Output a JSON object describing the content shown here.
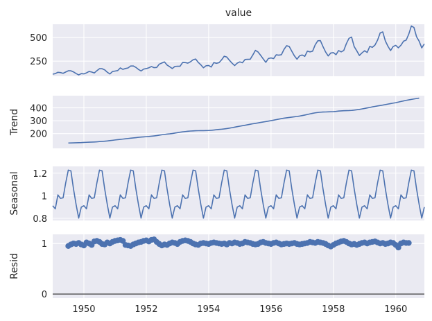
{
  "chart_data": [
    {
      "type": "line",
      "title": "value",
      "ylabel": "",
      "xlim": [
        1949.0,
        1960.917
      ],
      "ylim": [
        90,
        640
      ],
      "yticks": [
        250,
        500
      ],
      "grid": true,
      "series": [
        {
          "color": "#4c72b0",
          "x_start": 1949.0,
          "x_step": 0.08333,
          "values": [
            112,
            118,
            132,
            129,
            121,
            135,
            148,
            148,
            136,
            119,
            104,
            118,
            115,
            126,
            141,
            135,
            125,
            149,
            170,
            170,
            158,
            133,
            114,
            140,
            145,
            150,
            178,
            163,
            172,
            178,
            199,
            199,
            184,
            162,
            146,
            166,
            171,
            180,
            193,
            181,
            183,
            218,
            230,
            242,
            209,
            191,
            172,
            194,
            196,
            196,
            236,
            235,
            229,
            243,
            264,
            272,
            237,
            211,
            180,
            201,
            204,
            188,
            235,
            227,
            234,
            264,
            302,
            293,
            259,
            229,
            203,
            229,
            242,
            233,
            267,
            269,
            270,
            315,
            364,
            347,
            312,
            274,
            237,
            278,
            284,
            277,
            317,
            313,
            318,
            374,
            413,
            405,
            355,
            306,
            271,
            306,
            315,
            301,
            356,
            348,
            355,
            422,
            465,
            467,
            404,
            347,
            305,
            336,
            340,
            318,
            362,
            348,
            363,
            435,
            491,
            505,
            404,
            359,
            310,
            337,
            360,
            342,
            406,
            396,
            420,
            472,
            548,
            559,
            463,
            407,
            362,
            405,
            417,
            391,
            419,
            461,
            472,
            535,
            622,
            606,
            508,
            461,
            390,
            432
          ]
        }
      ]
    },
    {
      "type": "line",
      "title": "",
      "ylabel": "Trend",
      "xlim": [
        1949.0,
        1960.917
      ],
      "ylim": [
        85,
        495
      ],
      "yticks": [
        200,
        300,
        400
      ],
      "grid": true,
      "series": [
        {
          "color": "#4c72b0",
          "x_start": 1949.5,
          "x_step": 0.08333,
          "values": [
            126.8,
            127.3,
            127.9,
            128.6,
            129.0,
            129.8,
            131.0,
            132.2,
            133.1,
            133.8,
            134.7,
            136.0,
            137.7,
            139.3,
            140.9,
            142.8,
            145.2,
            147.8,
            150.4,
            152.8,
            154.9,
            157.1,
            159.5,
            161.8,
            164.1,
            166.3,
            168.5,
            170.8,
            173.0,
            174.5,
            176.0,
            177.6,
            179.6,
            182.0,
            184.7,
            187.8,
            190.8,
            193.6,
            196.0,
            198.0,
            200.6,
            203.9,
            207.4,
            210.8,
            213.6,
            215.8,
            218.0,
            219.9,
            221.0,
            222.0,
            222.6,
            222.8,
            223.0,
            223.3,
            223.9,
            225.5,
            227.8,
            230.3,
            232.3,
            234.1,
            236.4,
            239.3,
            242.6,
            246.3,
            250.0,
            253.8,
            257.6,
            261.3,
            264.8,
            268.7,
            272.8,
            276.5,
            279.6,
            283.1,
            286.8,
            290.4,
            293.8,
            297.3,
            300.8,
            304.6,
            308.4,
            312.7,
            316.8,
            320.1,
            322.6,
            325.4,
            328.1,
            330.7,
            333.2,
            336.4,
            340.2,
            344.4,
            348.8,
            353.4,
            357.9,
            361.5,
            364.2,
            366.2,
            367.8,
            368.3,
            369.0,
            369.8,
            370.8,
            372.6,
            375.1,
            376.8,
            377.8,
            378.5,
            379.1,
            380.3,
            382.5,
            385.3,
            388.3,
            391.8,
            395.6,
            399.5,
            403.4,
            407.5,
            411.3,
            414.9,
            418.5,
            421.8,
            425.7,
            429.6,
            433.1,
            436.9,
            440.4,
            445.0,
            449.7,
            454.3,
            458.5,
            462.2,
            466.1,
            469.4,
            472.8,
            475.9
          ]
        }
      ]
    },
    {
      "type": "line",
      "title": "",
      "ylabel": "Seasonal",
      "xlim": [
        1949.0,
        1960.917
      ],
      "ylim": [
        0.78,
        1.26
      ],
      "yticks": [
        0.8,
        1.0,
        1.2
      ],
      "grid": true,
      "series": [
        {
          "color": "#4c72b0",
          "x_start": 1949.0,
          "x_step": 0.08333,
          "pattern_repeats": 12,
          "pattern": [
            0.911,
            0.884,
            1.007,
            0.976,
            0.981,
            1.113,
            1.227,
            1.221,
            1.061,
            0.922,
            0.801,
            0.899
          ]
        }
      ]
    },
    {
      "type": "scatter",
      "title": "",
      "ylabel": "Resid",
      "xlim": [
        1949.0,
        1960.917
      ],
      "ylim": [
        -0.08,
        1.18
      ],
      "yticks": [
        0,
        1
      ],
      "grid": true,
      "baseline": 0,
      "xticks": [
        1950,
        1952,
        1954,
        1956,
        1958,
        1960
      ],
      "series": [
        {
          "color": "#4c72b0",
          "x_start": 1949.5,
          "x_step": 0.08333,
          "values": [
            0.95,
            0.98,
            1.0,
            0.99,
            1.01,
            0.98,
            0.96,
            1.02,
            1.0,
            0.97,
            1.04,
            1.05,
            1.03,
            0.99,
            0.98,
            1.02,
            1.0,
            1.03,
            1.05,
            1.06,
            1.07,
            1.05,
            0.97,
            0.96,
            0.95,
            0.98,
            1.0,
            1.02,
            1.03,
            1.05,
            1.06,
            1.04,
            1.07,
            1.08,
            1.03,
            0.99,
            0.96,
            0.98,
            0.97,
            1.0,
            1.02,
            1.01,
            0.99,
            1.03,
            1.05,
            1.06,
            1.05,
            1.03,
            1.0,
            0.98,
            0.97,
            1.0,
            1.01,
            1.0,
            0.99,
            1.01,
            1.02,
            1.01,
            1.0,
            0.99,
            1.0,
            0.98,
            1.01,
            1.0,
            1.02,
            1.01,
            0.99,
            1.0,
            1.03,
            1.02,
            1.01,
            0.99,
            0.98,
            0.99,
            1.02,
            1.03,
            1.01,
            1.0,
            0.99,
            1.01,
            1.02,
            1.0,
            0.98,
            0.99,
            1.0,
            0.99,
            1.0,
            1.01,
            0.99,
            0.98,
            0.99,
            1.0,
            1.01,
            1.03,
            1.02,
            1.01,
            1.03,
            1.02,
            1.01,
            0.99,
            0.96,
            0.94,
            0.97,
            1.0,
            1.02,
            1.04,
            1.05,
            1.03,
            1.0,
            0.98,
            0.99,
            0.97,
            0.99,
            1.01,
            1.02,
            1.0,
            1.02,
            1.03,
            1.04,
            1.02,
            1.0,
            1.01,
            0.99,
            1.0,
            1.02,
            1.01,
            0.97,
            0.92,
            1.0,
            1.02,
            1.01,
            1.01
          ]
        }
      ]
    }
  ]
}
